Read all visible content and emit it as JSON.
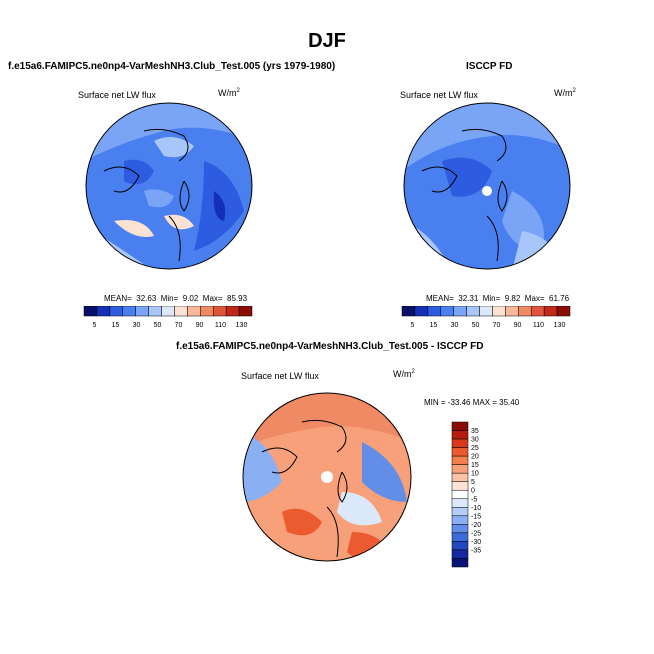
{
  "title": "DJF",
  "panels": [
    {
      "title": "f.e15a6.FAMIPC5.ne0np4-VarMeshNH3.Club_Test.005 (yrs 1979-1980)",
      "variable": "Surface net LW flux",
      "units_base": "W/m",
      "units_exp": "2",
      "mean_label": "MEAN=",
      "mean": "32.63",
      "min_label": "Min=",
      "min": "9.02",
      "max_label": "Max=",
      "max": "85.93"
    },
    {
      "title": "ISCCP FD",
      "variable": "Surface net LW flux",
      "units_base": "W/m",
      "units_exp": "2",
      "mean_label": "MEAN=",
      "mean": "32.31",
      "min_label": "Min=",
      "min": "9.82",
      "max_label": "Max=",
      "max": "61.76"
    }
  ],
  "diff_panel": {
    "title": "f.e15a6.FAMIPC5.ne0np4-VarMeshNH3.Club_Test.005 - ISCCP FD",
    "variable": "Surface net LW flux",
    "units_base": "W/m",
    "units_exp": "2",
    "minmax": "MIN = -33.46 MAX = 35.40"
  },
  "colorbar_main": {
    "colors": [
      "#08106a",
      "#1530b8",
      "#2e5ce0",
      "#4a7ff0",
      "#7aa4f6",
      "#a9c6fa",
      "#dde8fb",
      "#fbe2d2",
      "#f8b99a",
      "#ef8a64",
      "#e0553a",
      "#c0281a",
      "#8a0c06"
    ],
    "labels": [
      "5",
      "15",
      "30",
      "50",
      "70",
      "90",
      "110",
      "130"
    ]
  },
  "colorbar_diff": {
    "colors": [
      "#8a0c06",
      "#b51d10",
      "#d8391d",
      "#ec5a30",
      "#f47f4e",
      "#f8a07a",
      "#fac3a8",
      "#fde4d6",
      "#ffffff",
      "#dce9fb",
      "#b4cdf8",
      "#8aaff2",
      "#628ee8",
      "#3d6bdc",
      "#2446bf",
      "#1428a0",
      "#0a1478"
    ],
    "labels": [
      "35",
      "30",
      "25",
      "20",
      "15",
      "10",
      "5",
      "0",
      "-5",
      "-10",
      "-15",
      "-20",
      "-25",
      "-30",
      "-35"
    ]
  }
}
